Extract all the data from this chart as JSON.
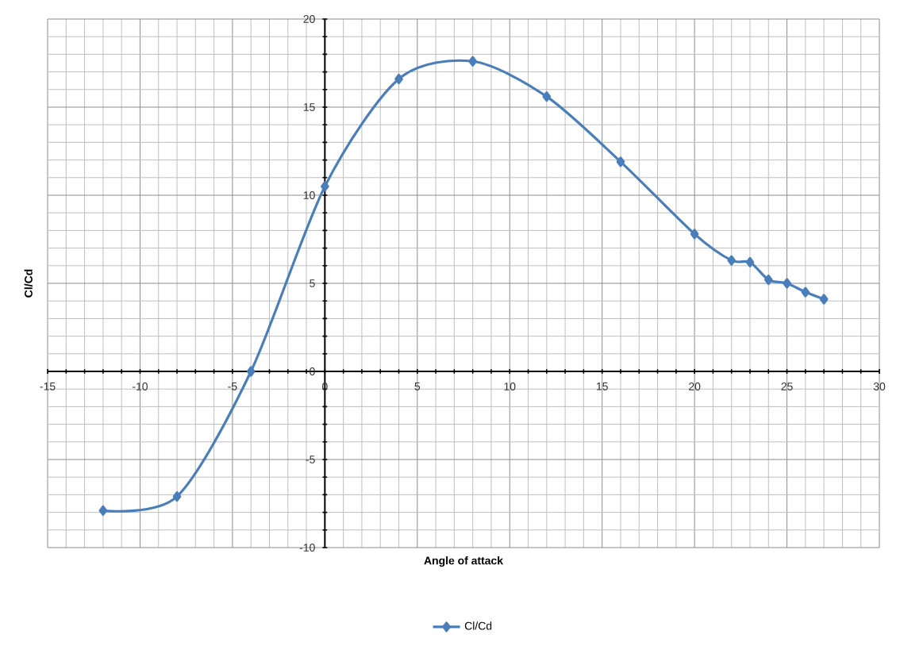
{
  "chart_data": {
    "type": "line",
    "xlabel": "Angle of attack",
    "ylabel": "Cl/Cd",
    "x": [
      -12,
      -8,
      -4,
      0,
      4,
      8,
      12,
      16,
      20,
      22,
      23,
      24,
      25,
      26,
      27
    ],
    "series": [
      {
        "name": "Cl/Cd",
        "color": "#4a7ebb",
        "values": [
          -7.9,
          -7.1,
          0,
          10.5,
          16.6,
          17.6,
          15.6,
          11.9,
          7.8,
          6.3,
          6.2,
          5.2,
          5.0,
          4.5,
          4.1
        ]
      }
    ],
    "xlim": [
      -15,
      30
    ],
    "ylim": [
      -10,
      20
    ],
    "xticks": [
      -15,
      -10,
      -5,
      0,
      5,
      10,
      15,
      20,
      25,
      30
    ],
    "yticks": [
      -10,
      -5,
      0,
      5,
      10,
      15,
      20
    ],
    "grid": true,
    "legend": "bottom",
    "marker": "diamond",
    "line_style": "solid"
  }
}
